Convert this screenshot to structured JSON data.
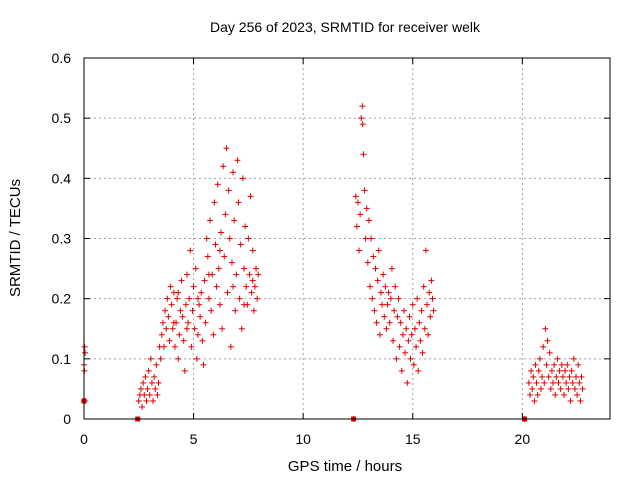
{
  "chart_data": {
    "type": "scatter",
    "title": "Day 256 of 2023, SRMTID for receiver welk",
    "xlabel": "GPS time / hours",
    "ylabel": "SRMTID / TECUs",
    "xlim": [
      0,
      24
    ],
    "ylim": [
      0,
      0.6
    ],
    "xticks": [
      0,
      5,
      10,
      15,
      20
    ],
    "xtick_labels": [
      "0",
      "5",
      "10",
      "15",
      "20"
    ],
    "yticks": [
      0,
      0.1,
      0.2,
      0.3,
      0.4,
      0.5,
      0.6
    ],
    "ytick_labels": [
      "0",
      "0.1",
      "0.2",
      "0.3",
      "0.4",
      "0.5",
      "0.6"
    ],
    "grid": true,
    "marker": "+",
    "color": "#e00000",
    "series": [
      {
        "name": "SRMTID",
        "points": [
          [
            0.0,
            0.03
          ],
          [
            0.0,
            0.09
          ],
          [
            0.03,
            0.12
          ],
          [
            0.05,
            0.11
          ],
          [
            0.02,
            0.08
          ],
          [
            0.04,
            0.03
          ],
          [
            2.5,
            0.03
          ],
          [
            2.55,
            0.04
          ],
          [
            2.6,
            0.05
          ],
          [
            2.65,
            0.02
          ],
          [
            2.7,
            0.06
          ],
          [
            2.75,
            0.04
          ],
          [
            2.8,
            0.07
          ],
          [
            2.85,
            0.03
          ],
          [
            2.9,
            0.05
          ],
          [
            2.95,
            0.08
          ],
          [
            3.0,
            0.04
          ],
          [
            3.05,
            0.1
          ],
          [
            3.1,
            0.06
          ],
          [
            3.15,
            0.03
          ],
          [
            3.2,
            0.07
          ],
          [
            3.25,
            0.05
          ],
          [
            3.3,
            0.09
          ],
          [
            3.35,
            0.04
          ],
          [
            3.4,
            0.06
          ],
          [
            3.45,
            0.12
          ],
          [
            3.5,
            0.1
          ],
          [
            3.55,
            0.14
          ],
          [
            3.6,
            0.16
          ],
          [
            3.65,
            0.12
          ],
          [
            3.7,
            0.18
          ],
          [
            3.75,
            0.15
          ],
          [
            3.8,
            0.2
          ],
          [
            3.85,
            0.17
          ],
          [
            3.9,
            0.13
          ],
          [
            3.95,
            0.22
          ],
          [
            4.0,
            0.19
          ],
          [
            4.05,
            0.15
          ],
          [
            4.1,
            0.21
          ],
          [
            4.15,
            0.12
          ],
          [
            4.2,
            0.16
          ],
          [
            4.25,
            0.2
          ],
          [
            4.3,
            0.1
          ],
          [
            4.35,
            0.14
          ],
          [
            4.4,
            0.18
          ],
          [
            4.45,
            0.23
          ],
          [
            4.5,
            0.17
          ],
          [
            4.55,
            0.13
          ],
          [
            4.6,
            0.08
          ],
          [
            4.65,
            0.19
          ],
          [
            4.7,
            0.24
          ],
          [
            4.75,
            0.16
          ],
          [
            4.8,
            0.2
          ],
          [
            4.85,
            0.28
          ],
          [
            4.9,
            0.12
          ],
          [
            4.95,
            0.18
          ],
          [
            5.0,
            0.22
          ],
          [
            5.05,
            0.15
          ],
          [
            5.1,
            0.25
          ],
          [
            5.15,
            0.1
          ],
          [
            5.2,
            0.14
          ],
          [
            5.25,
            0.19
          ],
          [
            5.3,
            0.17
          ],
          [
            5.35,
            0.21
          ],
          [
            5.4,
            0.13
          ],
          [
            5.45,
            0.09
          ],
          [
            5.5,
            0.23
          ],
          [
            5.55,
            0.16
          ],
          [
            5.6,
            0.3
          ],
          [
            5.65,
            0.27
          ],
          [
            5.7,
            0.2
          ],
          [
            5.75,
            0.33
          ],
          [
            5.8,
            0.18
          ],
          [
            5.85,
            0.24
          ],
          [
            5.9,
            0.14
          ],
          [
            5.95,
            0.36
          ],
          [
            6.0,
            0.29
          ],
          [
            6.05,
            0.22
          ],
          [
            6.1,
            0.39
          ],
          [
            6.15,
            0.25
          ],
          [
            6.2,
            0.19
          ],
          [
            6.25,
            0.31
          ],
          [
            6.3,
            0.15
          ],
          [
            6.35,
            0.42
          ],
          [
            6.4,
            0.27
          ],
          [
            6.45,
            0.34
          ],
          [
            6.5,
            0.45
          ],
          [
            6.55,
            0.21
          ],
          [
            6.6,
            0.38
          ],
          [
            6.65,
            0.3
          ],
          [
            6.7,
            0.12
          ],
          [
            6.75,
            0.26
          ],
          [
            6.8,
            0.41
          ],
          [
            6.85,
            0.33
          ],
          [
            6.9,
            0.18
          ],
          [
            6.95,
            0.24
          ],
          [
            7.0,
            0.43
          ],
          [
            7.05,
            0.36
          ],
          [
            7.1,
            0.2
          ],
          [
            7.15,
            0.29
          ],
          [
            7.2,
            0.15
          ],
          [
            7.25,
            0.4
          ],
          [
            7.3,
            0.25
          ],
          [
            7.35,
            0.32
          ],
          [
            7.4,
            0.22
          ],
          [
            7.45,
            0.19
          ],
          [
            7.5,
            0.3
          ],
          [
            7.55,
            0.24
          ],
          [
            7.6,
            0.37
          ],
          [
            7.65,
            0.21
          ],
          [
            7.7,
            0.28
          ],
          [
            7.75,
            0.18
          ],
          [
            7.8,
            0.22
          ],
          [
            7.85,
            0.25
          ],
          [
            7.9,
            0.2
          ],
          [
            7.95,
            0.24
          ],
          [
            4.1,
            0.16
          ],
          [
            4.3,
            0.21
          ],
          [
            4.7,
            0.15
          ],
          [
            5.2,
            0.2
          ],
          [
            5.7,
            0.24
          ],
          [
            6.2,
            0.28
          ],
          [
            6.8,
            0.22
          ],
          [
            7.3,
            0.19
          ],
          [
            7.7,
            0.23
          ],
          [
            12.4,
            0.37
          ],
          [
            12.45,
            0.32
          ],
          [
            12.5,
            0.36
          ],
          [
            12.55,
            0.28
          ],
          [
            12.6,
            0.34
          ],
          [
            12.65,
            0.5
          ],
          [
            12.7,
            0.52
          ],
          [
            12.72,
            0.49
          ],
          [
            12.75,
            0.44
          ],
          [
            12.8,
            0.38
          ],
          [
            12.85,
            0.3
          ],
          [
            12.9,
            0.35
          ],
          [
            12.95,
            0.26
          ],
          [
            13.0,
            0.33
          ],
          [
            13.05,
            0.22
          ],
          [
            13.1,
            0.3
          ],
          [
            13.15,
            0.2
          ],
          [
            13.2,
            0.27
          ],
          [
            13.25,
            0.18
          ],
          [
            13.3,
            0.25
          ],
          [
            13.35,
            0.16
          ],
          [
            13.4,
            0.23
          ],
          [
            13.45,
            0.28
          ],
          [
            13.5,
            0.14
          ],
          [
            13.55,
            0.21
          ],
          [
            13.6,
            0.19
          ],
          [
            13.65,
            0.24
          ],
          [
            13.7,
            0.17
          ],
          [
            13.75,
            0.22
          ],
          [
            13.8,
            0.15
          ],
          [
            13.85,
            0.19
          ],
          [
            13.9,
            0.21
          ],
          [
            13.95,
            0.16
          ],
          [
            14.0,
            0.2
          ],
          [
            14.05,
            0.25
          ],
          [
            14.1,
            0.13
          ],
          [
            14.15,
            0.18
          ],
          [
            14.2,
            0.22
          ],
          [
            14.25,
            0.1
          ],
          [
            14.3,
            0.17
          ],
          [
            14.35,
            0.2
          ],
          [
            14.4,
            0.12
          ],
          [
            14.45,
            0.16
          ],
          [
            14.5,
            0.08
          ],
          [
            14.55,
            0.14
          ],
          [
            14.6,
            0.18
          ],
          [
            14.65,
            0.11
          ],
          [
            14.7,
            0.15
          ],
          [
            14.75,
            0.06
          ],
          [
            14.8,
            0.13
          ],
          [
            14.85,
            0.17
          ],
          [
            14.9,
            0.1
          ],
          [
            14.95,
            0.14
          ],
          [
            15.0,
            0.19
          ],
          [
            15.05,
            0.09
          ],
          [
            15.1,
            0.15
          ],
          [
            15.15,
            0.12
          ],
          [
            15.2,
            0.2
          ],
          [
            15.25,
            0.08
          ],
          [
            15.3,
            0.16
          ],
          [
            15.35,
            0.13
          ],
          [
            15.4,
            0.18
          ],
          [
            15.45,
            0.11
          ],
          [
            15.5,
            0.22
          ],
          [
            15.55,
            0.15
          ],
          [
            15.6,
            0.28
          ],
          [
            15.65,
            0.19
          ],
          [
            15.7,
            0.14
          ],
          [
            15.75,
            0.21
          ],
          [
            15.8,
            0.17
          ],
          [
            15.85,
            0.23
          ],
          [
            15.9,
            0.2
          ],
          [
            15.95,
            0.18
          ],
          [
            12.3,
            0.0
          ],
          [
            20.1,
            0.0
          ],
          [
            20.3,
            0.06
          ],
          [
            20.35,
            0.04
          ],
          [
            20.4,
            0.08
          ],
          [
            20.45,
            0.05
          ],
          [
            20.5,
            0.07
          ],
          [
            20.55,
            0.03
          ],
          [
            20.6,
            0.09
          ],
          [
            20.65,
            0.06
          ],
          [
            20.7,
            0.04
          ],
          [
            20.75,
            0.08
          ],
          [
            20.8,
            0.1
          ],
          [
            20.85,
            0.05
          ],
          [
            20.9,
            0.07
          ],
          [
            20.95,
            0.12
          ],
          [
            21.0,
            0.06
          ],
          [
            21.05,
            0.15
          ],
          [
            21.1,
            0.09
          ],
          [
            21.15,
            0.13
          ],
          [
            21.2,
            0.07
          ],
          [
            21.25,
            0.11
          ],
          [
            21.3,
            0.05
          ],
          [
            21.35,
            0.08
          ],
          [
            21.4,
            0.06
          ],
          [
            21.45,
            0.09
          ],
          [
            21.5,
            0.04
          ],
          [
            21.55,
            0.07
          ],
          [
            21.6,
            0.1
          ],
          [
            21.65,
            0.06
          ],
          [
            21.7,
            0.08
          ],
          [
            21.75,
            0.05
          ],
          [
            21.8,
            0.09
          ],
          [
            21.85,
            0.07
          ],
          [
            21.9,
            0.04
          ],
          [
            21.95,
            0.08
          ],
          [
            22.0,
            0.06
          ],
          [
            22.05,
            0.09
          ],
          [
            22.1,
            0.05
          ],
          [
            22.15,
            0.07
          ],
          [
            22.2,
            0.03
          ],
          [
            22.25,
            0.08
          ],
          [
            22.3,
            0.06
          ],
          [
            22.35,
            0.1
          ],
          [
            22.4,
            0.05
          ],
          [
            22.45,
            0.07
          ],
          [
            22.5,
            0.04
          ],
          [
            22.55,
            0.09
          ],
          [
            22.6,
            0.06
          ],
          [
            22.65,
            0.03
          ],
          [
            22.7,
            0.07
          ],
          [
            22.75,
            0.05
          ]
        ]
      }
    ],
    "markers_square": [
      [
        0.0,
        0.03
      ],
      [
        2.45,
        0.0
      ],
      [
        12.3,
        0.0
      ],
      [
        20.1,
        0.0
      ]
    ]
  }
}
